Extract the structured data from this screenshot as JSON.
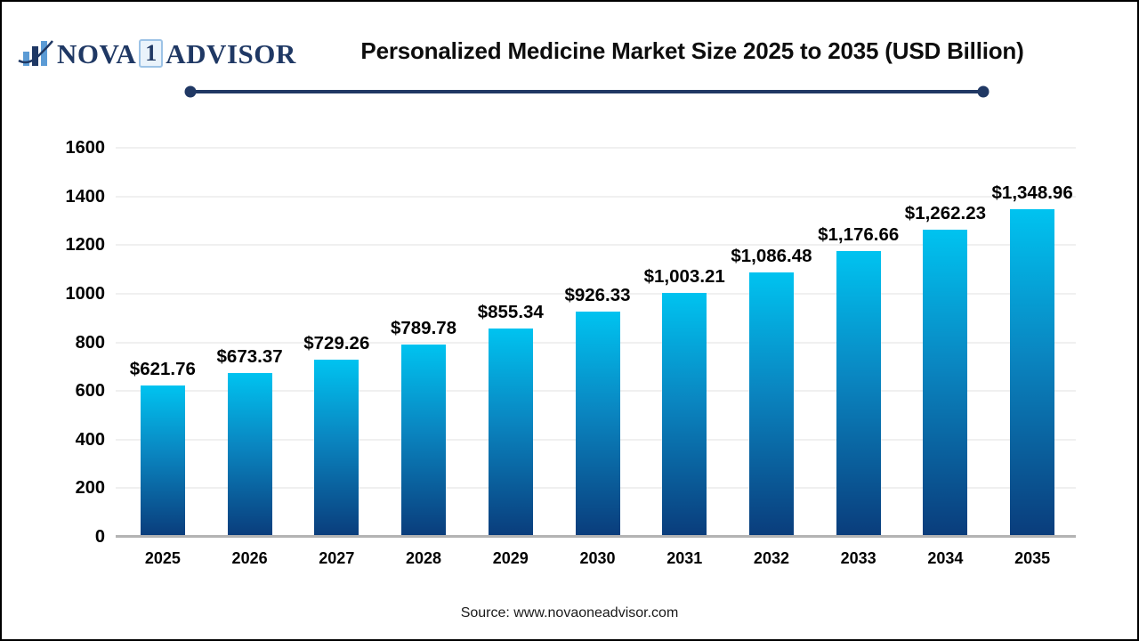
{
  "logo": {
    "nova": "NOVA",
    "one": "1",
    "advisor": "ADVISOR",
    "navy": "#1f3864",
    "light_blue": "#5b9bd5"
  },
  "header": {
    "title": "Personalized Medicine Market Size 2025 to 2035 (USD Billion)",
    "divider_color": "#203864"
  },
  "chart_data": {
    "type": "bar",
    "title": "Personalized Medicine Market Size 2025 to 2035 (USD Billion)",
    "categories": [
      "2025",
      "2026",
      "2027",
      "2028",
      "2029",
      "2030",
      "2031",
      "2032",
      "2033",
      "2034",
      "2035"
    ],
    "values": [
      621.76,
      673.37,
      729.26,
      789.78,
      855.34,
      926.33,
      1003.21,
      1086.48,
      1176.66,
      1262.23,
      1348.96
    ],
    "value_labels": [
      "$621.76",
      "$673.37",
      "$729.26",
      "$789.78",
      "$855.34",
      "$926.33",
      "$1,003.21",
      "$1,086.48",
      "$1,176.66",
      "$1,262.23",
      "$1,348.96"
    ],
    "xlabel": "",
    "ylabel": "",
    "ylim": [
      0,
      1600
    ],
    "ytick_step": 200,
    "yticks": [
      0,
      200,
      400,
      600,
      800,
      1000,
      1200,
      1400,
      1600
    ],
    "grid": true,
    "legend": "none",
    "bar_gradient_top": "#00c3f0",
    "bar_gradient_bottom": "#0a3c7b",
    "gridline_color": "#f0f0f0",
    "axis_line_color": "#b3b3b3",
    "label_color": "#000000"
  },
  "footer": {
    "source": "Source: www.novaoneadvisor.com"
  }
}
